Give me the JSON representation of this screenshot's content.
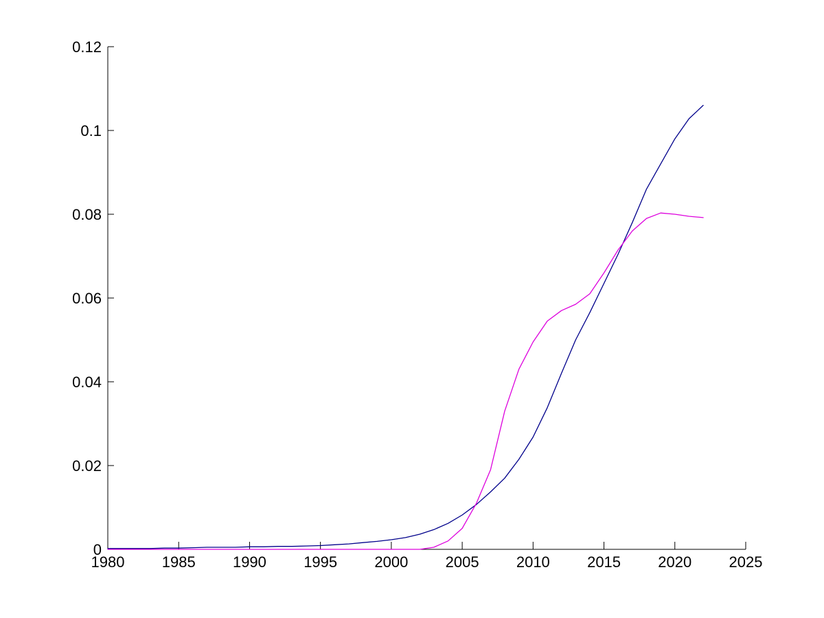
{
  "figure": {
    "background_color": "#ffffff",
    "axis_color": "#000000"
  },
  "chart_data": {
    "type": "line",
    "title": "",
    "xlabel": "",
    "ylabel": "",
    "legend": null,
    "grid": false,
    "xlim": [
      1980,
      2025
    ],
    "ylim": [
      0,
      0.12
    ],
    "x_ticks": [
      {
        "value": 1980,
        "label": "1980"
      },
      {
        "value": 1985,
        "label": "1985"
      },
      {
        "value": 1990,
        "label": "1990"
      },
      {
        "value": 1995,
        "label": "1995"
      },
      {
        "value": 2000,
        "label": "2000"
      },
      {
        "value": 2005,
        "label": "2005"
      },
      {
        "value": 2010,
        "label": "2010"
      },
      {
        "value": 2015,
        "label": "2015"
      },
      {
        "value": 2020,
        "label": "2020"
      },
      {
        "value": 2025,
        "label": "2025"
      }
    ],
    "y_ticks": [
      {
        "value": 0,
        "label": "0"
      },
      {
        "value": 0.02,
        "label": "0.02"
      },
      {
        "value": 0.04,
        "label": "0.04"
      },
      {
        "value": 0.06,
        "label": "0.06"
      },
      {
        "value": 0.08,
        "label": "0.08"
      },
      {
        "value": 0.1,
        "label": "0.1"
      },
      {
        "value": 0.12,
        "label": "0.12"
      }
    ],
    "x": [
      1980,
      1981,
      1982,
      1983,
      1984,
      1985,
      1986,
      1987,
      1988,
      1989,
      1990,
      1991,
      1992,
      1993,
      1994,
      1995,
      1996,
      1997,
      1998,
      1999,
      2000,
      2001,
      2002,
      2003,
      2004,
      2005,
      2006,
      2007,
      2008,
      2009,
      2010,
      2011,
      2012,
      2013,
      2014,
      2015,
      2016,
      2017,
      2018,
      2019,
      2020,
      2021,
      2022
    ],
    "series": [
      {
        "name": "smooth-diffusion-curve",
        "color": "#00008B",
        "values": [
          0.0002,
          0.0002,
          0.0002,
          0.0002,
          0.0003,
          0.0003,
          0.0004,
          0.0005,
          0.0005,
          0.0005,
          0.0006,
          0.0006,
          0.0007,
          0.0007,
          0.0008,
          0.0009,
          0.0011,
          0.0013,
          0.0016,
          0.0019,
          0.0023,
          0.0028,
          0.0036,
          0.0047,
          0.0062,
          0.0082,
          0.0107,
          0.0137,
          0.017,
          0.0215,
          0.0268,
          0.0338,
          0.042,
          0.05,
          0.0565,
          0.0635,
          0.0705,
          0.078,
          0.086,
          0.092,
          0.098,
          0.1028,
          0.106
        ]
      },
      {
        "name": "s-shaped-observed-curve",
        "color": "#DD00DD",
        "values": [
          0,
          0,
          0,
          0,
          0,
          0,
          0,
          0,
          0,
          0,
          0,
          0,
          0,
          0,
          0,
          0,
          0,
          0,
          0,
          0,
          0,
          0,
          0,
          0.0005,
          0.002,
          0.005,
          0.011,
          0.019,
          0.033,
          0.043,
          0.0495,
          0.0545,
          0.057,
          0.0585,
          0.061,
          0.066,
          0.0715,
          0.076,
          0.079,
          0.0803,
          0.08,
          0.0795,
          0.0792
        ]
      }
    ]
  }
}
